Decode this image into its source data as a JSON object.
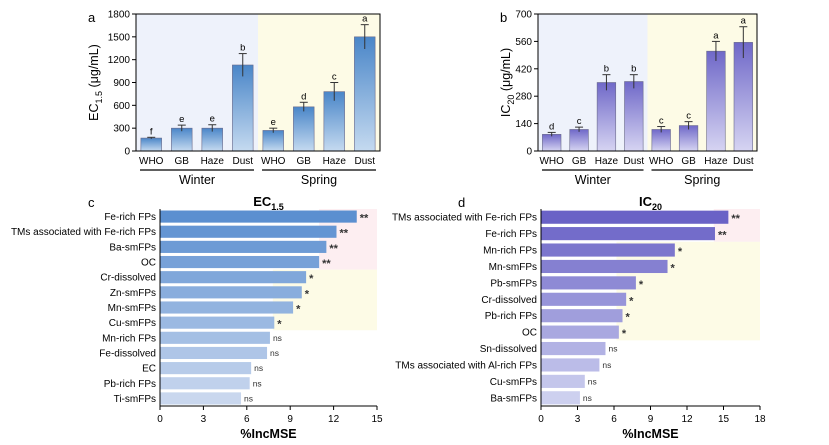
{
  "colors": {
    "bar_blue_top": "#4a86c8",
    "bar_blue_bottom": "#c5daf0",
    "bar_purple_top": "#6f68c8",
    "bar_purple_bottom": "#d6d4f2",
    "bg_winter": "#eef2fb",
    "bg_spring": "#fdfbe6",
    "bg_pink": "#fdeef1",
    "bg_yellow": "#fdfbe6",
    "h_blue_dark": "#5b8fd0",
    "h_blue_light": "#c9d7ee",
    "h_purple_dark": "#6a62c6",
    "h_purple_light": "#cdd0ef"
  },
  "chart_data": [
    {
      "panel": "a",
      "type": "bar",
      "ylabel_main": "EC",
      "ylabel_sub": "1.5",
      "ylabel_unit": " (μg/mL)",
      "ylim": [
        0,
        1800
      ],
      "yticks": [
        0,
        300,
        600,
        900,
        1200,
        1500,
        1800
      ],
      "categories": [
        "WHO",
        "GB",
        "Haze",
        "Dust",
        "WHO",
        "GB",
        "Haze",
        "Dust"
      ],
      "values": [
        170,
        300,
        300,
        1130,
        270,
        580,
        780,
        1500
      ],
      "errors": [
        10,
        40,
        45,
        150,
        30,
        60,
        120,
        160
      ],
      "letters": [
        "f",
        "e",
        "e",
        "b",
        "e",
        "d",
        "c",
        "a"
      ],
      "groups": [
        "Winter",
        "Spring"
      ]
    },
    {
      "panel": "b",
      "type": "bar",
      "ylabel_main": "IC",
      "ylabel_sub": "20",
      "ylabel_unit": " (μg/mL)",
      "ylim": [
        0,
        700
      ],
      "yticks": [
        0,
        140,
        280,
        420,
        560,
        700
      ],
      "categories": [
        "WHO",
        "GB",
        "Haze",
        "Dust",
        "WHO",
        "GB",
        "Haze",
        "Dust"
      ],
      "values": [
        85,
        110,
        350,
        355,
        110,
        130,
        510,
        555
      ],
      "errors": [
        10,
        12,
        40,
        35,
        15,
        20,
        50,
        80
      ],
      "letters": [
        "d",
        "c",
        "b",
        "b",
        "c",
        "c",
        "a",
        "a"
      ],
      "groups": [
        "Winter",
        "Spring"
      ]
    },
    {
      "panel": "c",
      "type": "bar",
      "orientation": "horizontal",
      "title_main": "EC",
      "title_sub": "1.5",
      "xlabel": "%IncMSE",
      "xlim": [
        0,
        15
      ],
      "xticks": [
        0,
        3,
        6,
        9,
        12,
        15
      ],
      "categories": [
        "Fe-rich FPs",
        "TMs associated with Fe-rich FPs",
        "Ba-smFPs",
        "OC",
        "Cr-dissolved",
        "Zn-smFPs",
        "Mn-smFPs",
        "Cu-smFPs",
        "Mn-rich FPs",
        "Fe-dissolved",
        "EC",
        "Pb-rich FPs",
        "Ti-smFPs"
      ],
      "values": [
        13.6,
        12.2,
        11.5,
        11.0,
        10.1,
        9.8,
        9.2,
        7.9,
        7.6,
        7.4,
        6.3,
        6.2,
        5.6
      ],
      "significance": [
        "**",
        "**",
        "**",
        "**",
        "*",
        "*",
        "*",
        "*",
        "ns",
        "ns",
        "ns",
        "ns",
        "ns"
      ]
    },
    {
      "panel": "d",
      "type": "bar",
      "orientation": "horizontal",
      "title_main": "IC",
      "title_sub": "20",
      "xlabel": "%IncMSE",
      "xlim": [
        0,
        18
      ],
      "xticks": [
        0,
        3,
        6,
        9,
        12,
        15,
        18
      ],
      "categories": [
        "TMs associated with Fe-rich FPs",
        "Fe-rich FPs",
        "Mn-rich FPs",
        "Mn-smFPs",
        "Pb-smFPs",
        "Cr-dissolved",
        "Pb-rich FPs",
        "OC",
        "Sn-dissolved",
        "TMs associated with Al-rich FPs",
        "Cu-smFPs",
        "Ba-smFPs"
      ],
      "values": [
        15.4,
        14.3,
        11.0,
        10.4,
        7.8,
        7.0,
        6.7,
        6.4,
        5.3,
        4.8,
        3.6,
        3.2
      ],
      "significance": [
        "**",
        "**",
        "*",
        "*",
        "*",
        "*",
        "*",
        "*",
        "ns",
        "ns",
        "ns",
        "ns"
      ]
    }
  ]
}
